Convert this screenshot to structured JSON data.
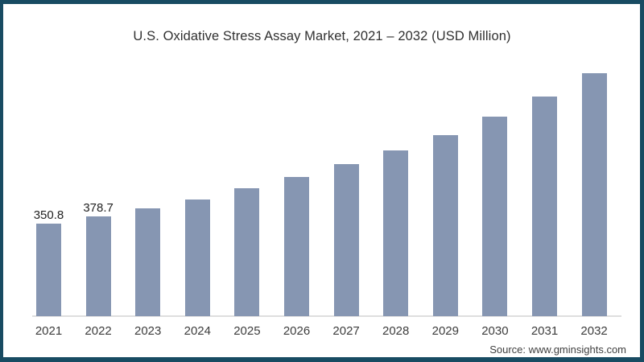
{
  "page": {
    "title": "U.S. Oxidative Stress Assay Market, 2021 – 2032 (USD Million)",
    "source_credit": "Source: www.gminsights.com"
  },
  "colors": {
    "frame": "#184b62",
    "bar": "#8696b2",
    "title_text": "#303030",
    "axis_label": "#3c3c3c",
    "data_label": "#222222",
    "source_text": "#3f3f3f",
    "baseline": "#dedede"
  },
  "chart_data": {
    "type": "bar",
    "title": "U.S. Oxidative Stress Assay Market, 2021 – 2032 (USD Million)",
    "unit": "USD Million",
    "categories": [
      "2021",
      "2022",
      "2023",
      "2024",
      "2025",
      "2026",
      "2027",
      "2028",
      "2029",
      "2030",
      "2031",
      "2032"
    ],
    "values": [
      350.8,
      378.7,
      409,
      443,
      485,
      528,
      577,
      629,
      687,
      757,
      833,
      922
    ],
    "data_labels": [
      "350.8",
      "378.7",
      "",
      "",
      "",
      "",
      "",
      "",
      "",
      "",
      "",
      ""
    ],
    "xlabel": "",
    "ylabel": "",
    "ylim": [
      0,
      950
    ],
    "grid": false,
    "legend": false,
    "y_axis_shown": false
  }
}
